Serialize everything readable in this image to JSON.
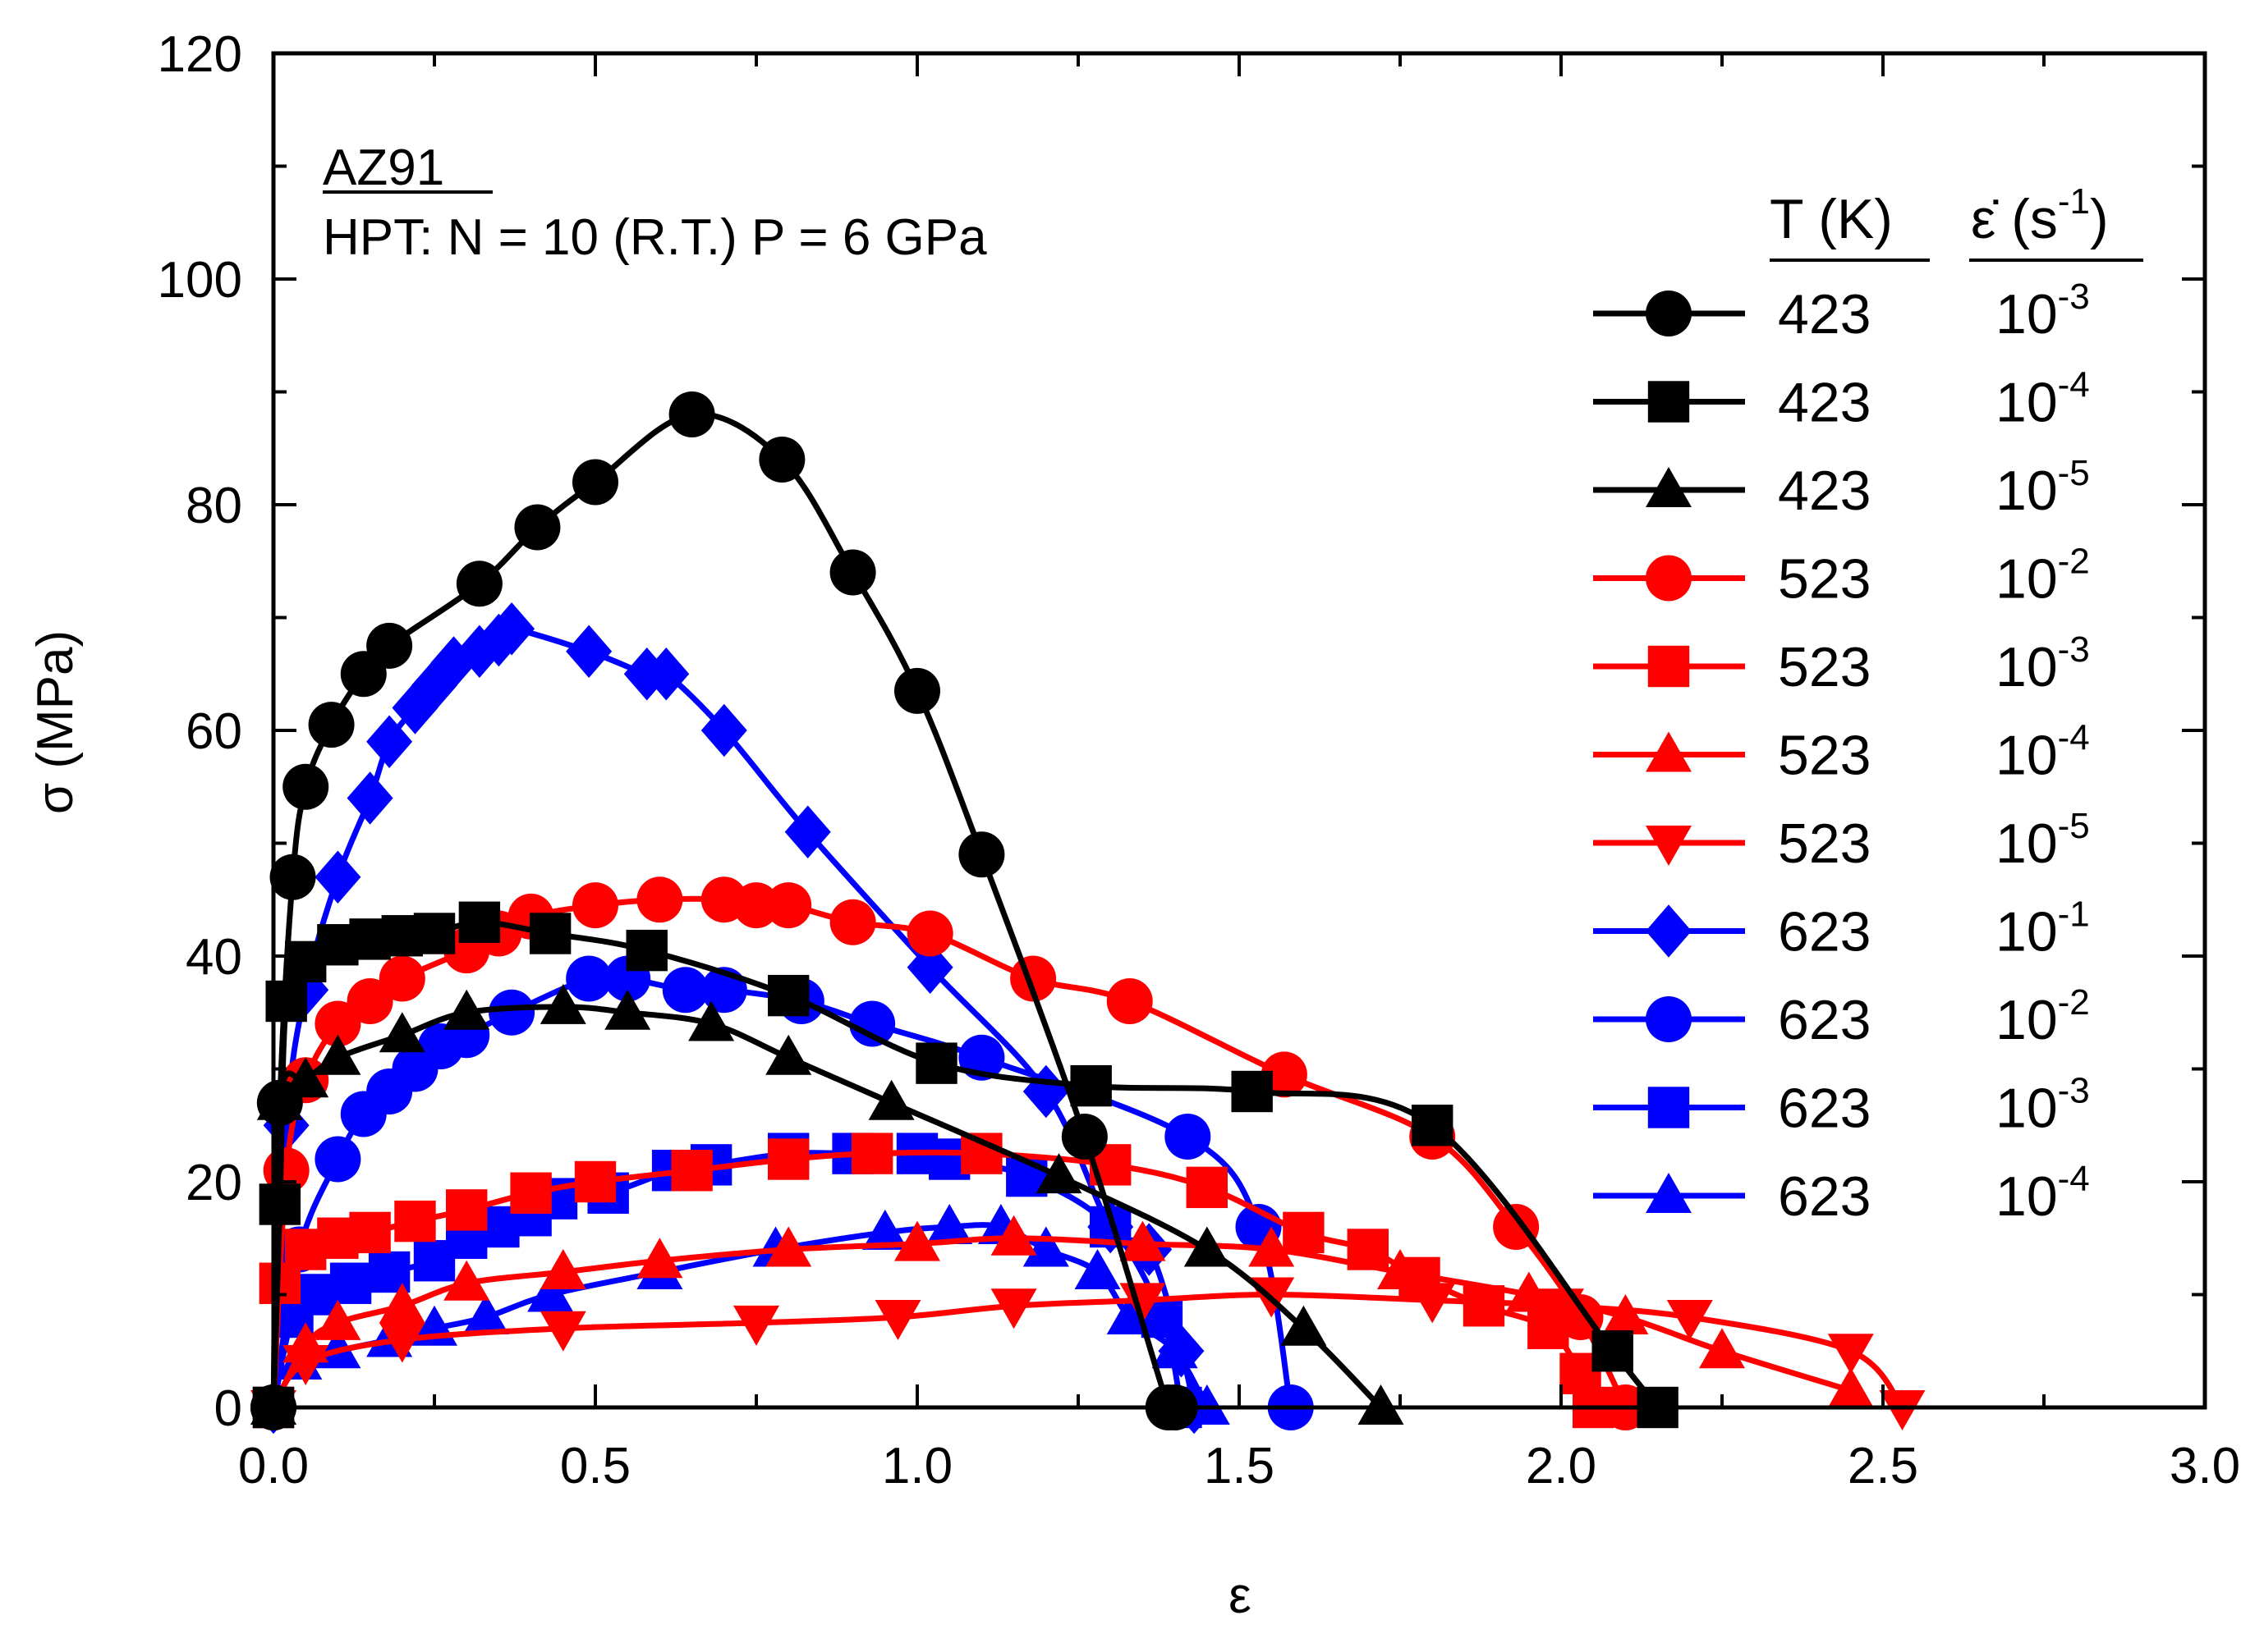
{
  "chart_data": {
    "type": "line",
    "xlabel": "ε",
    "ylabel": "σ (MPa)",
    "xlim": [
      0,
      3
    ],
    "ylim": [
      0,
      120
    ],
    "xticks": [
      "0.0",
      "0.5",
      "1.0",
      "1.5",
      "2.0",
      "2.5",
      "3.0"
    ],
    "yticks": [
      "0",
      "20",
      "40",
      "60",
      "80",
      "100",
      "120"
    ],
    "annotation": {
      "material": "AZ91",
      "condition": "HPT: N = 10 (R.T.) P = 6 GPa"
    },
    "legend": {
      "position": "right",
      "temp_header": "T (K)",
      "rate_header": "ε̇ (s",
      "rate_header_exp": "-1",
      "rate_header_close": ")",
      "rate_base": "10"
    },
    "series": [
      {
        "T": "423",
        "rate_exp": "-3",
        "color": "#000000",
        "marker": "circle",
        "x": [
          0,
          0.01,
          0.03,
          0.05,
          0.09,
          0.14,
          0.18,
          0.32,
          0.41,
          0.5,
          0.65,
          0.79,
          0.9,
          1.0,
          1.1,
          1.26,
          1.39,
          1.4
        ],
        "y": [
          0,
          27,
          47,
          55,
          60.5,
          65,
          67.5,
          73,
          78,
          82,
          88,
          84,
          74,
          63.5,
          49,
          24,
          0,
          0
        ]
      },
      {
        "T": "423",
        "rate_exp": "-4",
        "color": "#000000",
        "marker": "square",
        "x": [
          0,
          0.01,
          0.02,
          0.05,
          0.1,
          0.15,
          0.2,
          0.25,
          0.32,
          0.43,
          0.58,
          0.8,
          1.03,
          1.27,
          1.52,
          1.8,
          2.08,
          2.15
        ],
        "y": [
          0,
          18,
          36,
          39.5,
          41,
          41.5,
          41.8,
          42,
          43,
          42,
          40.5,
          36.5,
          30.5,
          28.5,
          28,
          25,
          5,
          0
        ]
      },
      {
        "T": "423",
        "rate_exp": "-5",
        "color": "#000000",
        "marker": "triangle-up",
        "x": [
          0,
          0.01,
          0.05,
          0.1,
          0.2,
          0.3,
          0.45,
          0.55,
          0.68,
          0.8,
          0.96,
          1.22,
          1.45,
          1.6,
          1.72
        ],
        "y": [
          0,
          27,
          29,
          31,
          33,
          35,
          35.5,
          35,
          34,
          31,
          27,
          20.5,
          14,
          7,
          0
        ]
      },
      {
        "T": "523",
        "rate_exp": "-2",
        "color": "#ff0000",
        "marker": "circle",
        "x": [
          0,
          0.02,
          0.05,
          0.1,
          0.15,
          0.2,
          0.3,
          0.35,
          0.4,
          0.5,
          0.6,
          0.7,
          0.75,
          0.8,
          0.9,
          1.02,
          1.18,
          1.33,
          1.57,
          1.8,
          1.93,
          2.03,
          2.1
        ],
        "y": [
          0,
          21,
          29,
          34,
          36,
          38,
          40.5,
          42,
          43.5,
          44.5,
          45,
          45,
          44.5,
          44.5,
          43,
          42,
          38,
          36,
          29.5,
          24,
          16,
          8,
          0
        ]
      },
      {
        "T": "523",
        "rate_exp": "-3",
        "color": "#ff0000",
        "marker": "square",
        "x": [
          0,
          0.01,
          0.05,
          0.1,
          0.15,
          0.22,
          0.3,
          0.4,
          0.5,
          0.65,
          0.8,
          0.93,
          1.1,
          1.3,
          1.45,
          1.6,
          1.7,
          1.78,
          1.88,
          1.98,
          2.03,
          2.05
        ],
        "y": [
          0,
          11,
          14,
          15,
          15.5,
          16.5,
          17.5,
          19,
          20,
          21,
          22,
          22.5,
          22.5,
          21.5,
          19.5,
          15.5,
          14,
          11.5,
          9,
          7,
          3,
          0
        ]
      },
      {
        "T": "523",
        "rate_exp": "-4",
        "color": "#ff0000",
        "marker": "triangle-up",
        "x": [
          0,
          0.05,
          0.1,
          0.2,
          0.3,
          0.45,
          0.6,
          0.8,
          1.0,
          1.15,
          1.35,
          1.55,
          1.75,
          1.95,
          2.1,
          2.25,
          2.45
        ],
        "y": [
          0,
          5.5,
          7.5,
          9,
          11,
          12,
          13,
          14,
          14.5,
          15,
          14.5,
          14,
          12,
          10,
          8,
          5,
          1.5
        ]
      },
      {
        "T": "523",
        "rate_exp": "-5",
        "color": "#ff0000",
        "marker": "triangle-down",
        "x": [
          0,
          0.05,
          0.2,
          0.45,
          0.75,
          0.97,
          1.15,
          1.35,
          1.55,
          1.8,
          2.0,
          2.2,
          2.45,
          2.53
        ],
        "y": [
          0,
          4,
          6,
          7,
          7.5,
          8,
          9,
          9.5,
          10,
          9.5,
          9,
          8,
          5,
          0
        ]
      },
      {
        "T": "623",
        "rate_exp": "-1",
        "color": "#0000ff",
        "marker": "diamond",
        "x": [
          0,
          0.02,
          0.05,
          0.1,
          0.15,
          0.18,
          0.22,
          0.25,
          0.28,
          0.32,
          0.35,
          0.37,
          0.49,
          0.58,
          0.61,
          0.7,
          0.83,
          1.02,
          1.2,
          1.3,
          1.36,
          1.41,
          1.43
        ],
        "y": [
          0,
          25,
          37,
          47,
          54,
          59,
          62,
          64,
          66,
          67,
          68,
          69,
          67,
          65,
          65,
          60,
          51,
          39,
          28,
          16,
          14,
          5,
          0
        ]
      },
      {
        "T": "623",
        "rate_exp": "-2",
        "color": "#0000ff",
        "marker": "circle",
        "x": [
          0,
          0.04,
          0.1,
          0.14,
          0.18,
          0.22,
          0.26,
          0.3,
          0.37,
          0.49,
          0.55,
          0.64,
          0.7,
          0.82,
          0.93,
          1.1,
          1.42,
          1.53,
          1.58
        ],
        "y": [
          0,
          14,
          22,
          26,
          28,
          30,
          32,
          33,
          35,
          38,
          38,
          37,
          37,
          36,
          34,
          31,
          24,
          16,
          0
        ]
      },
      {
        "T": "623",
        "rate_exp": "-3",
        "color": "#0000ff",
        "marker": "square",
        "x": [
          0,
          0.03,
          0.07,
          0.12,
          0.18,
          0.25,
          0.3,
          0.35,
          0.4,
          0.44,
          0.52,
          0.62,
          0.68,
          0.8,
          0.9,
          1.0,
          1.05,
          1.17,
          1.3,
          1.38,
          1.41
        ],
        "y": [
          0,
          8,
          10,
          11,
          12,
          13,
          15,
          16,
          17,
          18.5,
          19,
          21,
          21.5,
          22.5,
          22.5,
          22.5,
          22,
          20.5,
          16,
          8,
          0
        ]
      },
      {
        "T": "623",
        "rate_exp": "-4",
        "color": "#0000ff",
        "marker": "triangle-up",
        "x": [
          0,
          0.04,
          0.1,
          0.18,
          0.25,
          0.33,
          0.43,
          0.6,
          0.78,
          0.95,
          1.05,
          1.13,
          1.2,
          1.28,
          1.33,
          1.4,
          1.45
        ],
        "y": [
          0,
          4,
          5,
          6,
          7,
          8,
          10,
          12,
          14,
          15.5,
          16,
          16,
          14,
          12,
          8,
          5,
          0
        ]
      }
    ]
  }
}
